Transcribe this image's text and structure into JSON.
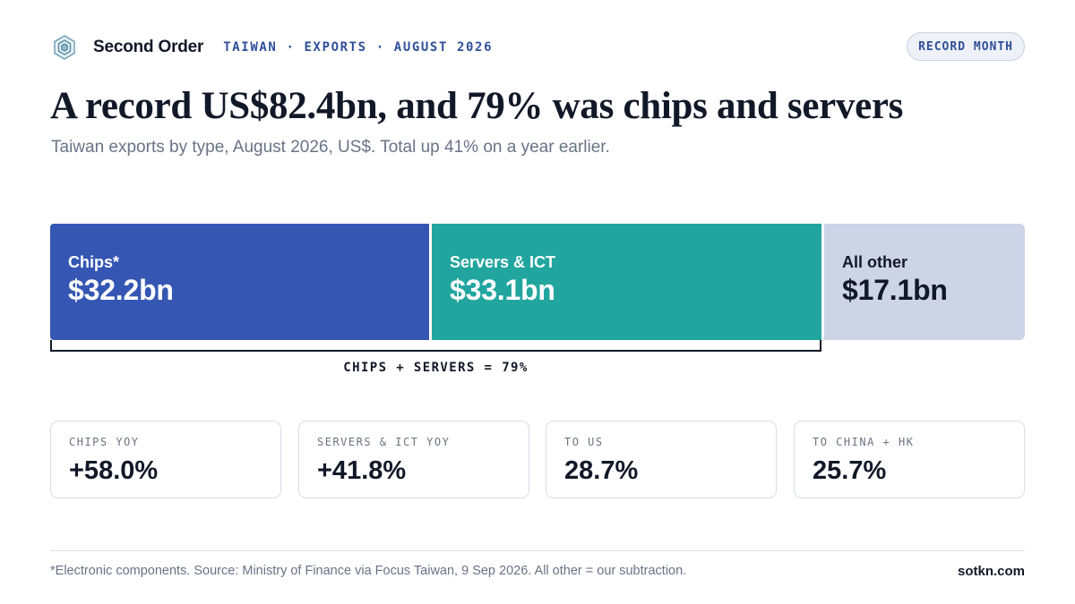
{
  "header": {
    "brand": "Second Order",
    "logo_icon": "layered-hexagon-icon",
    "kicker": "TAIWAN · EXPORTS · AUGUST 2026",
    "badge": "RECORD MONTH"
  },
  "headline": {
    "title": "A record US$82.4bn, and 79% was chips and servers",
    "subtitle": "Taiwan exports by type, August 2026, US$. Total up 41% on a year earlier."
  },
  "chart_data": {
    "type": "bar",
    "orientation": "horizontal-stacked",
    "unit": "US$bn",
    "total": 82.4,
    "segments": [
      {
        "label": "Chips*",
        "value": 32.2,
        "value_label": "$32.2bn",
        "color": "#3557b3",
        "text_color": "#ffffff"
      },
      {
        "label": "Servers & ICT",
        "value": 33.1,
        "value_label": "$33.1bn",
        "color": "#22a59f",
        "text_color": "#ffffff"
      },
      {
        "label": "All other",
        "value": 17.1,
        "value_label": "$17.1bn",
        "color": "#ccd4e6",
        "text_color": "#111827"
      }
    ],
    "annotation": {
      "text": "CHIPS + SERVERS = 79%",
      "covers_segments": [
        0,
        1
      ]
    }
  },
  "stats": [
    {
      "label": "CHIPS YOY",
      "value": "+58.0%"
    },
    {
      "label": "SERVERS & ICT YOY",
      "value": "+41.8%"
    },
    {
      "label": "TO US",
      "value": "28.7%"
    },
    {
      "label": "TO CHINA + HK",
      "value": "25.7%"
    }
  ],
  "footer": {
    "note": "*Electronic components. Source: Ministry of Finance via Focus Taiwan, 9 Sep 2026. All other = our subtraction.",
    "site": "sotkn.com"
  },
  "colors": {
    "accent": "#2f4f9a",
    "chips": "#3557b3",
    "servers": "#22a59f",
    "other": "#ccd4e6"
  }
}
